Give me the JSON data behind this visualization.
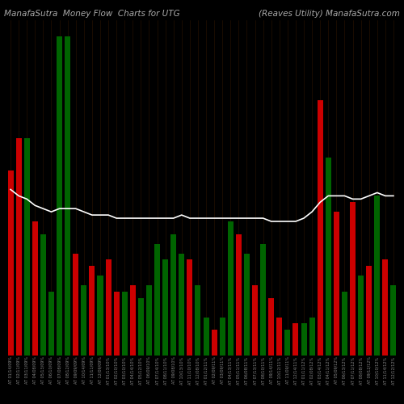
{
  "title_left": "ManafaSutra  Money Flow  Charts for UTG",
  "title_right": "(Reaves Utility) ManafaSutra.com",
  "background_color": "#000000",
  "bar_width": 0.7,
  "categories": [
    "AT 01/14/09%",
    "AT 02/11/09%",
    "AT 03/11/09%",
    "AT 04/08/09%",
    "AT 05/13/09%",
    "AT 06/10/09%",
    "AT 07/08/09%",
    "AT 08/12/09%",
    "AT 09/09/09%",
    "AT 10/14/09%",
    "AT 11/11/09%",
    "AT 12/09/09%",
    "AT 01/13/10%",
    "AT 02/10/10%",
    "AT 03/10/10%",
    "AT 04/14/10%",
    "AT 05/12/10%",
    "AT 06/09/10%",
    "AT 07/14/10%",
    "AT 08/11/10%",
    "AT 09/08/10%",
    "AT 10/13/10%",
    "AT 11/10/10%",
    "AT 12/08/10%",
    "AT 01/12/11%",
    "AT 02/09/11%",
    "AT 03/09/11%",
    "AT 04/13/11%",
    "AT 05/11/11%",
    "AT 06/08/11%",
    "AT 07/13/11%",
    "AT 08/10/11%",
    "AT 09/14/11%",
    "AT 10/12/11%",
    "AT 11/09/11%",
    "AT 12/14/11%",
    "AT 01/11/12%",
    "AT 02/08/12%",
    "AT 03/14/12%",
    "AT 04/11/12%",
    "AT 05/09/12%",
    "AT 06/13/12%",
    "AT 07/11/12%",
    "AT 08/08/12%",
    "AT 09/12/12%",
    "AT 10/10/12%",
    "AT 11/14/12%",
    "AT 12/12/12%"
  ],
  "bar_heights": [
    58,
    68,
    68,
    42,
    38,
    20,
    100,
    100,
    32,
    22,
    28,
    25,
    30,
    20,
    20,
    22,
    18,
    22,
    35,
    30,
    38,
    32,
    30,
    22,
    12,
    8,
    12,
    42,
    38,
    32,
    22,
    35,
    18,
    12,
    8,
    10,
    10,
    12,
    80,
    62,
    45,
    20,
    48,
    25,
    28,
    50,
    30,
    22
  ],
  "bar_colors": [
    "red",
    "red",
    "green",
    "red",
    "green",
    "green",
    "green",
    "green",
    "red",
    "green",
    "red",
    "green",
    "red",
    "red",
    "green",
    "red",
    "green",
    "green",
    "green",
    "green",
    "green",
    "green",
    "red",
    "green",
    "green",
    "red",
    "green",
    "green",
    "red",
    "green",
    "red",
    "green",
    "red",
    "red",
    "green",
    "red",
    "green",
    "green",
    "red",
    "green",
    "red",
    "green",
    "red",
    "green",
    "red",
    "green",
    "red",
    "green"
  ],
  "line_values": [
    52,
    50,
    49,
    47,
    46,
    45,
    46,
    46,
    46,
    45,
    44,
    44,
    44,
    43,
    43,
    43,
    43,
    43,
    43,
    43,
    43,
    44,
    43,
    43,
    43,
    43,
    43,
    43,
    43,
    43,
    43,
    43,
    42,
    42,
    42,
    42,
    43,
    45,
    48,
    50,
    50,
    50,
    49,
    49,
    50,
    51,
    50,
    50
  ],
  "line_color": "#ffffff",
  "line_width": 1.2,
  "title_color": "#aaaaaa",
  "title_fontsize": 7.5,
  "tick_color": "#888888",
  "tick_fontsize": 3.5,
  "ylim_max": 105,
  "dark_red_bar": "#8B0000",
  "orange_line_color": "#8B4000"
}
